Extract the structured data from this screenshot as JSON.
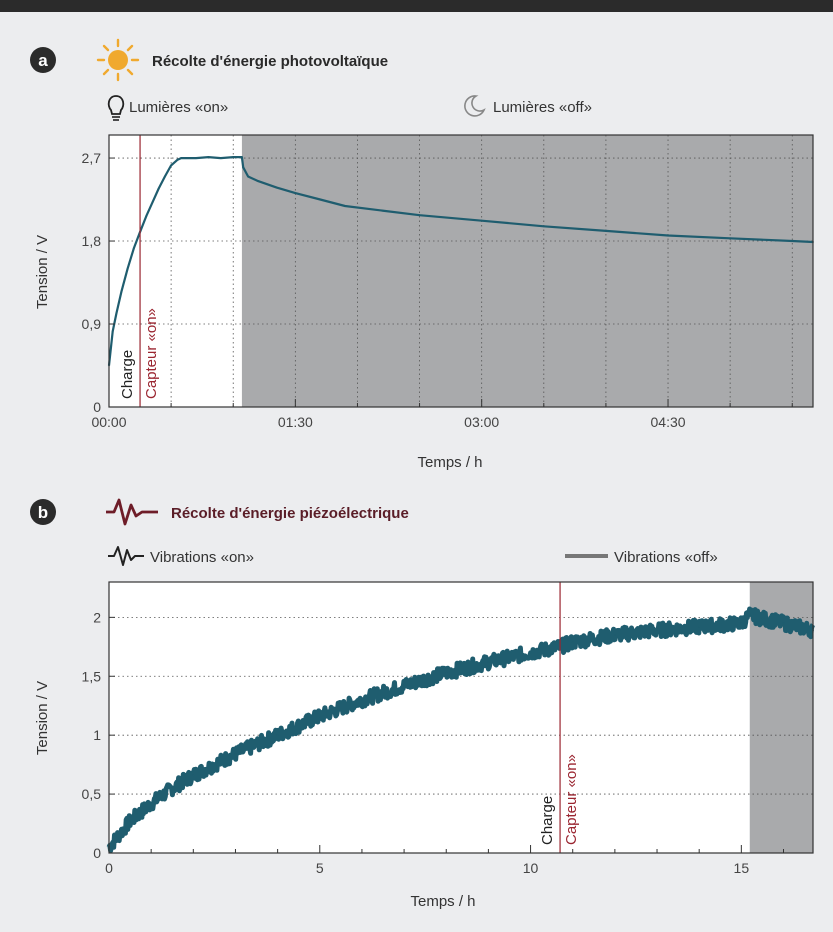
{
  "colors": {
    "data_line": "#1f5d6f",
    "capteur_line": "#9a2530",
    "shade": "#a9aaac",
    "panel_bg": "#ffffff",
    "page_bg": "#ecedef",
    "badge": "#2b2b2b",
    "sun": "#f0a92e",
    "piezo_title": "#5a1d27"
  },
  "chart_data": [
    {
      "type": "line",
      "panel": "a",
      "title": "Récolte d'énergie photovoltaïque",
      "title_icon": "sun-icon",
      "legend": [
        {
          "label": "Lumières «on»",
          "icon": "lightbulb-icon"
        },
        {
          "label": "Lumières «off»",
          "icon": "moon-icon"
        }
      ],
      "xlabel": "Temps / h",
      "ylabel": "Tension / V",
      "xlim": [
        0,
        5.667
      ],
      "ylim": [
        0,
        2.95
      ],
      "xticks": [
        0,
        1.5,
        3,
        4.5
      ],
      "xtick_labels": [
        "00:00",
        "01:30",
        "03:00",
        "04:30"
      ],
      "minor_xticks": [
        0.5,
        1.0,
        2.0,
        2.5,
        3.5,
        4.0,
        5.0,
        5.5
      ],
      "yticks": [
        0,
        0.9,
        1.8,
        2.7
      ],
      "ytick_labels": [
        "0",
        "0,9",
        "1,8",
        "2,7"
      ],
      "grid": "dotted horizontal and vertical",
      "lights_off_from": 1.07,
      "charge_label": "Charge",
      "capteur_label": "Capteur «on»",
      "capteur_x": 0.25,
      "series": [
        {
          "x": [
            0,
            0.03,
            0.06,
            0.1,
            0.15,
            0.2,
            0.25,
            0.3,
            0.35,
            0.4,
            0.45,
            0.5,
            0.55,
            0.58,
            0.62,
            0.7,
            0.8,
            0.9,
            1.0,
            1.07,
            1.08,
            1.12,
            1.2,
            1.35,
            1.5,
            1.7,
            1.9,
            2.2,
            2.5,
            3.0,
            3.5,
            4.0,
            4.5,
            5.0,
            5.5,
            5.667
          ],
          "y": [
            0.45,
            0.82,
            1.02,
            1.25,
            1.5,
            1.72,
            1.9,
            2.07,
            2.22,
            2.37,
            2.5,
            2.62,
            2.68,
            2.7,
            2.7,
            2.7,
            2.71,
            2.7,
            2.71,
            2.71,
            2.6,
            2.5,
            2.45,
            2.38,
            2.32,
            2.25,
            2.18,
            2.13,
            2.08,
            2.02,
            1.96,
            1.91,
            1.86,
            1.83,
            1.8,
            1.79
          ]
        }
      ]
    },
    {
      "type": "line",
      "panel": "b",
      "title": "Récolte d'énergie piézoélectrique",
      "title_icon": "vibration-icon",
      "legend": [
        {
          "label": "Vibrations «on»",
          "icon": "vibration-icon"
        },
        {
          "label": "Vibrations «off»",
          "icon": "flat-line-icon"
        }
      ],
      "xlabel": "Temps / h",
      "ylabel": "Tension / V",
      "xlim": [
        0,
        16.7
      ],
      "ylim": [
        0,
        2.3
      ],
      "xticks": [
        0,
        5,
        10,
        15
      ],
      "xtick_labels": [
        "0",
        "5",
        "10",
        "15"
      ],
      "minor_xticks": [
        1,
        2,
        3,
        4,
        6,
        7,
        8,
        9,
        11,
        12,
        13,
        14,
        16
      ],
      "yticks": [
        0,
        0.5,
        1,
        1.5,
        2
      ],
      "ytick_labels": [
        "0",
        "0,5",
        "1",
        "1,5",
        "2"
      ],
      "grid": "dotted horizontal",
      "vibrations_off_from": 15.2,
      "charge_label": "Charge",
      "capteur_label": "Capteur «on»",
      "capteur_x": 10.7,
      "series": [
        {
          "x": [
            0,
            0.5,
            1,
            1.5,
            2,
            3,
            4,
            5,
            6,
            7,
            8,
            9,
            10,
            10.7,
            11,
            12,
            13,
            14,
            15,
            15.2,
            15.5,
            16,
            16.7
          ],
          "y": [
            0.05,
            0.27,
            0.42,
            0.55,
            0.66,
            0.84,
            1.0,
            1.16,
            1.3,
            1.42,
            1.53,
            1.62,
            1.7,
            1.75,
            1.79,
            1.85,
            1.89,
            1.92,
            1.95,
            2.02,
            1.99,
            1.95,
            1.89
          ]
        }
      ]
    }
  ]
}
